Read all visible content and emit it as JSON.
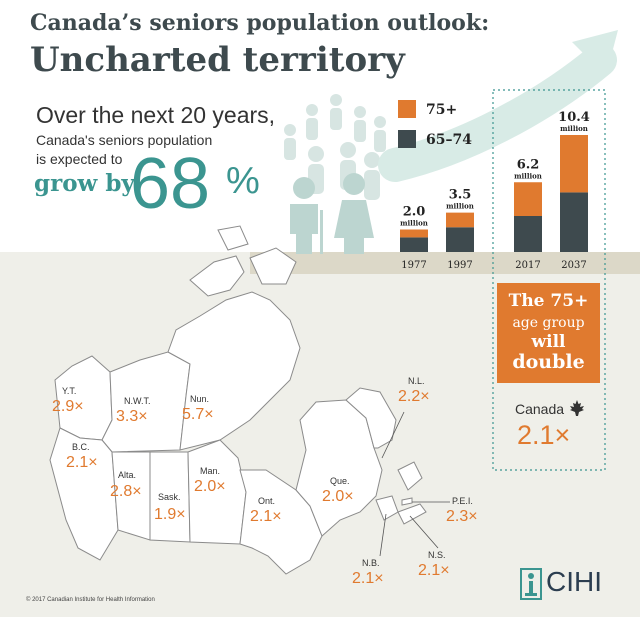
{
  "header": {
    "title_line1": "Canada’s seniors population outlook:",
    "title_line2": "Uncharted territory"
  },
  "intro": {
    "line1": "Over the next 20 years,",
    "line2": "Canada's seniors population",
    "line3": "is expected to",
    "grow_by": "grow by",
    "percent_number": "68",
    "percent_sign": "%"
  },
  "colors": {
    "orange": "#e07a2f",
    "dark": "#3e4a4e",
    "teal": "#3b9590",
    "people": "#cfe0dd"
  },
  "chart_data": {
    "type": "bar",
    "stacked": true,
    "categories": [
      "1977",
      "1997",
      "2017",
      "2037"
    ],
    "series": [
      {
        "name": "65–74",
        "values": [
          1.3,
          2.2,
          3.2,
          5.3
        ]
      },
      {
        "name": "75+",
        "values": [
          0.7,
          1.3,
          3.0,
          5.1
        ]
      }
    ],
    "totals": [
      2.0,
      3.5,
      6.2,
      10.4
    ],
    "total_labels": [
      "2.0",
      "3.5",
      "6.2",
      "10.4"
    ],
    "unit_label": "million",
    "legend": [
      "75+",
      "65–74"
    ],
    "legend_position": "top-left",
    "ylim": [
      0,
      10.4
    ]
  },
  "callout": {
    "line1": "The 75+",
    "line2": "age group",
    "line3": "will",
    "line4": "double"
  },
  "canada": {
    "label": "Canada",
    "value": "2.1×"
  },
  "provinces": [
    {
      "name": "Y.T.",
      "value": "2.9×"
    },
    {
      "name": "N.W.T.",
      "value": "3.3×"
    },
    {
      "name": "Nun.",
      "value": "5.7×"
    },
    {
      "name": "B.C.",
      "value": "2.1×"
    },
    {
      "name": "Alta.",
      "value": "2.8×"
    },
    {
      "name": "Sask.",
      "value": "1.9×"
    },
    {
      "name": "Man.",
      "value": "2.0×"
    },
    {
      "name": "Ont.",
      "value": "2.1×"
    },
    {
      "name": "Que.",
      "value": "2.0×"
    },
    {
      "name": "N.L.",
      "value": "2.2×"
    },
    {
      "name": "P.E.I.",
      "value": "2.3×"
    },
    {
      "name": "N.S.",
      "value": "2.1×"
    },
    {
      "name": "N.B.",
      "value": "2.1×"
    }
  ],
  "footer": {
    "copyright": "© 2017 Canadian Institute for Health Information",
    "brand": "CIHI"
  }
}
